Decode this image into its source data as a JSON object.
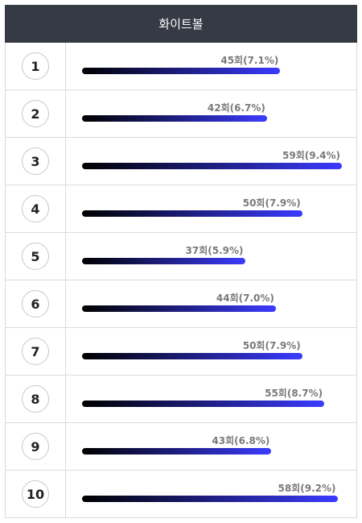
{
  "header": {
    "title": "화이트볼"
  },
  "colors": {
    "header_bg": "#363a45",
    "bar_start": "#000000",
    "bar_end": "#3b3bff",
    "label": "#7a7a7a"
  },
  "chart_data": {
    "type": "bar",
    "orientation": "horizontal",
    "title": "화이트볼",
    "categories": [
      "1",
      "2",
      "3",
      "4",
      "5",
      "6",
      "7",
      "8",
      "9",
      "10"
    ],
    "values": [
      45,
      42,
      59,
      50,
      37,
      44,
      50,
      55,
      43,
      58
    ],
    "percents": [
      "7.1%",
      "6.7%",
      "9.4%",
      "7.9%",
      "5.9%",
      "7.0%",
      "7.9%",
      "8.7%",
      "6.8%",
      "9.2%"
    ],
    "labels": [
      "45회(7.1%)",
      "42회(6.7%)",
      "59회(9.4%)",
      "50회(7.9%)",
      "37회(5.9%)",
      "44회(7.0%)",
      "50회(7.9%)",
      "55회(8.7%)",
      "43회(6.8%)",
      "58회(9.2%)"
    ],
    "xlim": [
      0,
      59
    ],
    "grid": false,
    "legend": "none"
  }
}
